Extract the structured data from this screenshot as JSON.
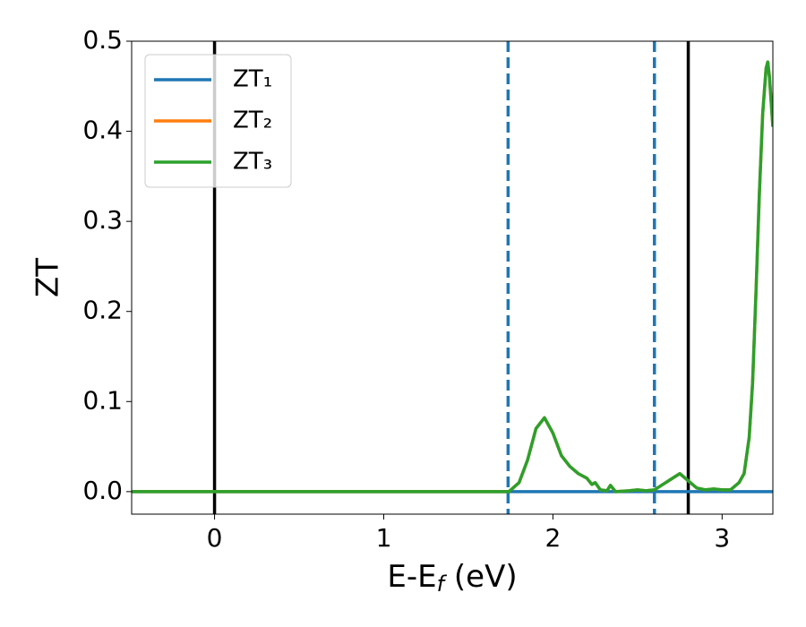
{
  "chart_data": {
    "type": "line",
    "ylabel": "ZT",
    "xlabel": [
      {
        "text": "E-E"
      },
      {
        "text": "f",
        "sub": true
      },
      {
        "text": " (eV)"
      }
    ],
    "x": [
      -0.49,
      0,
      0.5,
      1,
      1.5,
      1.74,
      1.8,
      1.85,
      1.9,
      1.95,
      2.0,
      2.05,
      2.1,
      2.15,
      2.2,
      2.23,
      2.25,
      2.28,
      2.32,
      2.34,
      2.37,
      2.45,
      2.5,
      2.55,
      2.6,
      2.65,
      2.7,
      2.75,
      2.8,
      2.85,
      2.9,
      2.95,
      3.0,
      3.05,
      3.1,
      3.13,
      3.16,
      3.18,
      3.2,
      3.22,
      3.24,
      3.26,
      3.27,
      3.28,
      3.3
    ],
    "series": [
      {
        "name": "ZT₁",
        "color": "#1f77b4",
        "values": [
          0,
          0,
          0,
          0,
          0,
          0,
          0,
          0,
          0,
          0,
          0,
          0,
          0,
          0,
          0,
          0,
          0,
          0,
          0,
          0,
          0,
          0,
          0,
          0,
          0,
          0,
          0,
          0,
          0,
          0,
          0,
          0,
          0,
          0,
          0,
          0,
          0,
          0,
          0,
          0,
          0,
          0,
          0,
          0,
          0
        ]
      },
      {
        "name": "ZT₂",
        "color": "#ff7f0e",
        "values": [
          0,
          0,
          0,
          0,
          0,
          0,
          0.01,
          0.035,
          0.07,
          0.082,
          0.065,
          0.04,
          0.028,
          0.02,
          0.015,
          0.008,
          0.01,
          0.002,
          0.001,
          0.007,
          0,
          0.001,
          0.002,
          0.001,
          0.002,
          0.008,
          0.014,
          0.02,
          0.012,
          0.004,
          0.002,
          0.003,
          0.002,
          0.002,
          0.01,
          0.02,
          0.06,
          0.12,
          0.22,
          0.33,
          0.42,
          0.47,
          0.477,
          0.46,
          0.405
        ]
      },
      {
        "name": "ZT₃",
        "color": "#2ca02c",
        "values": [
          0,
          0,
          0,
          0,
          0,
          0,
          0.01,
          0.035,
          0.07,
          0.082,
          0.065,
          0.04,
          0.028,
          0.02,
          0.015,
          0.008,
          0.01,
          0.002,
          0.001,
          0.007,
          0,
          0.001,
          0.002,
          0.001,
          0.002,
          0.008,
          0.014,
          0.02,
          0.012,
          0.004,
          0.002,
          0.003,
          0.002,
          0.002,
          0.01,
          0.02,
          0.06,
          0.12,
          0.22,
          0.33,
          0.42,
          0.47,
          0.477,
          0.46,
          0.405
        ]
      }
    ],
    "vlines": [
      {
        "x": 0,
        "color": "#000000",
        "dashed": false
      },
      {
        "x": 2.8,
        "color": "#000000",
        "dashed": false
      },
      {
        "x": 1.735,
        "color": "#1f77b4",
        "dashed": true
      },
      {
        "x": 2.6,
        "color": "#1f77b4",
        "dashed": true
      }
    ],
    "xlim": [
      -0.49,
      3.3
    ],
    "ylim": [
      -0.025,
      0.5
    ],
    "xticks": [
      0,
      1,
      2,
      3
    ],
    "yticks": [
      {
        "value": 0,
        "label": "0.0"
      },
      0.1,
      0.2,
      0.3,
      0.4,
      0.5
    ],
    "legend": "upper left",
    "grid": false
  }
}
